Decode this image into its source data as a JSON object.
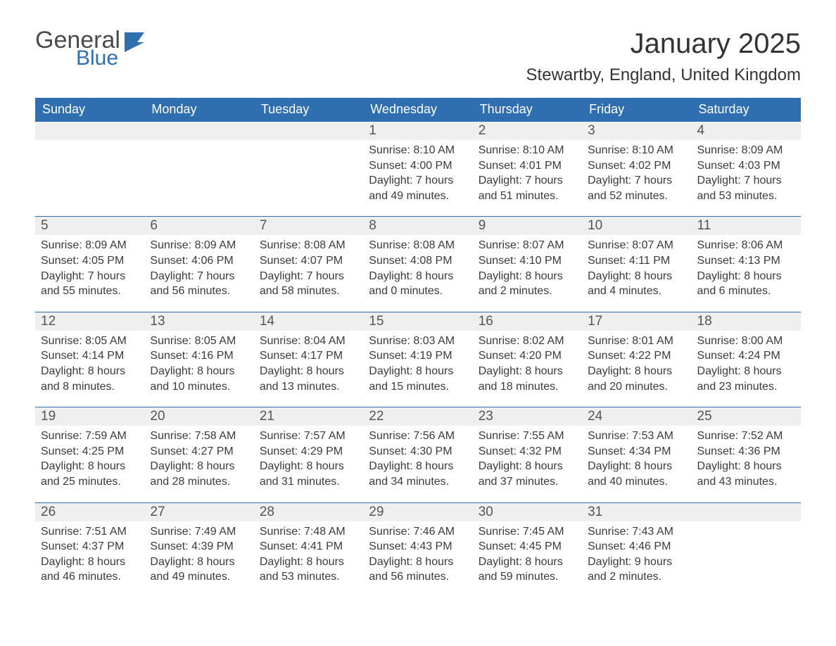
{
  "brand": {
    "part1": "General",
    "part2": "Blue",
    "flag_color": "#2f6fb0"
  },
  "title": "January 2025",
  "location": "Stewartby, England, United Kingdom",
  "colors": {
    "header_bg": "#2f6fb0",
    "header_fg": "#ffffff",
    "daynum_bg": "#efefef",
    "row_divider": "#2f6fb0",
    "body_bg": "#ffffff",
    "text": "#3a3a3a"
  },
  "typography": {
    "title_fontsize": 40,
    "location_fontsize": 24,
    "header_fontsize": 18,
    "daynum_fontsize": 19,
    "body_fontsize": 16
  },
  "layout": {
    "columns": 7,
    "rows": 5
  },
  "weekdays": [
    "Sunday",
    "Monday",
    "Tuesday",
    "Wednesday",
    "Thursday",
    "Friday",
    "Saturday"
  ],
  "labels": {
    "sunrise": "Sunrise",
    "sunset": "Sunset",
    "daylight": "Daylight"
  },
  "weeks": [
    [
      null,
      null,
      null,
      {
        "d": "1",
        "sunrise": "8:10 AM",
        "sunset": "4:00 PM",
        "daylight": "7 hours and 49 minutes."
      },
      {
        "d": "2",
        "sunrise": "8:10 AM",
        "sunset": "4:01 PM",
        "daylight": "7 hours and 51 minutes."
      },
      {
        "d": "3",
        "sunrise": "8:10 AM",
        "sunset": "4:02 PM",
        "daylight": "7 hours and 52 minutes."
      },
      {
        "d": "4",
        "sunrise": "8:09 AM",
        "sunset": "4:03 PM",
        "daylight": "7 hours and 53 minutes."
      }
    ],
    [
      {
        "d": "5",
        "sunrise": "8:09 AM",
        "sunset": "4:05 PM",
        "daylight": "7 hours and 55 minutes."
      },
      {
        "d": "6",
        "sunrise": "8:09 AM",
        "sunset": "4:06 PM",
        "daylight": "7 hours and 56 minutes."
      },
      {
        "d": "7",
        "sunrise": "8:08 AM",
        "sunset": "4:07 PM",
        "daylight": "7 hours and 58 minutes."
      },
      {
        "d": "8",
        "sunrise": "8:08 AM",
        "sunset": "4:08 PM",
        "daylight": "8 hours and 0 minutes."
      },
      {
        "d": "9",
        "sunrise": "8:07 AM",
        "sunset": "4:10 PM",
        "daylight": "8 hours and 2 minutes."
      },
      {
        "d": "10",
        "sunrise": "8:07 AM",
        "sunset": "4:11 PM",
        "daylight": "8 hours and 4 minutes."
      },
      {
        "d": "11",
        "sunrise": "8:06 AM",
        "sunset": "4:13 PM",
        "daylight": "8 hours and 6 minutes."
      }
    ],
    [
      {
        "d": "12",
        "sunrise": "8:05 AM",
        "sunset": "4:14 PM",
        "daylight": "8 hours and 8 minutes."
      },
      {
        "d": "13",
        "sunrise": "8:05 AM",
        "sunset": "4:16 PM",
        "daylight": "8 hours and 10 minutes."
      },
      {
        "d": "14",
        "sunrise": "8:04 AM",
        "sunset": "4:17 PM",
        "daylight": "8 hours and 13 minutes."
      },
      {
        "d": "15",
        "sunrise": "8:03 AM",
        "sunset": "4:19 PM",
        "daylight": "8 hours and 15 minutes."
      },
      {
        "d": "16",
        "sunrise": "8:02 AM",
        "sunset": "4:20 PM",
        "daylight": "8 hours and 18 minutes."
      },
      {
        "d": "17",
        "sunrise": "8:01 AM",
        "sunset": "4:22 PM",
        "daylight": "8 hours and 20 minutes."
      },
      {
        "d": "18",
        "sunrise": "8:00 AM",
        "sunset": "4:24 PM",
        "daylight": "8 hours and 23 minutes."
      }
    ],
    [
      {
        "d": "19",
        "sunrise": "7:59 AM",
        "sunset": "4:25 PM",
        "daylight": "8 hours and 25 minutes."
      },
      {
        "d": "20",
        "sunrise": "7:58 AM",
        "sunset": "4:27 PM",
        "daylight": "8 hours and 28 minutes."
      },
      {
        "d": "21",
        "sunrise": "7:57 AM",
        "sunset": "4:29 PM",
        "daylight": "8 hours and 31 minutes."
      },
      {
        "d": "22",
        "sunrise": "7:56 AM",
        "sunset": "4:30 PM",
        "daylight": "8 hours and 34 minutes."
      },
      {
        "d": "23",
        "sunrise": "7:55 AM",
        "sunset": "4:32 PM",
        "daylight": "8 hours and 37 minutes."
      },
      {
        "d": "24",
        "sunrise": "7:53 AM",
        "sunset": "4:34 PM",
        "daylight": "8 hours and 40 minutes."
      },
      {
        "d": "25",
        "sunrise": "7:52 AM",
        "sunset": "4:36 PM",
        "daylight": "8 hours and 43 minutes."
      }
    ],
    [
      {
        "d": "26",
        "sunrise": "7:51 AM",
        "sunset": "4:37 PM",
        "daylight": "8 hours and 46 minutes."
      },
      {
        "d": "27",
        "sunrise": "7:49 AM",
        "sunset": "4:39 PM",
        "daylight": "8 hours and 49 minutes."
      },
      {
        "d": "28",
        "sunrise": "7:48 AM",
        "sunset": "4:41 PM",
        "daylight": "8 hours and 53 minutes."
      },
      {
        "d": "29",
        "sunrise": "7:46 AM",
        "sunset": "4:43 PM",
        "daylight": "8 hours and 56 minutes."
      },
      {
        "d": "30",
        "sunrise": "7:45 AM",
        "sunset": "4:45 PM",
        "daylight": "8 hours and 59 minutes."
      },
      {
        "d": "31",
        "sunrise": "7:43 AM",
        "sunset": "4:46 PM",
        "daylight": "9 hours and 2 minutes."
      },
      null
    ]
  ]
}
